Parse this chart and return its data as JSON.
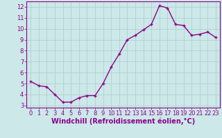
{
  "x": [
    0,
    1,
    2,
    3,
    4,
    5,
    6,
    7,
    8,
    9,
    10,
    11,
    12,
    13,
    14,
    15,
    16,
    17,
    18,
    19,
    20,
    21,
    22,
    23
  ],
  "y": [
    5.2,
    4.8,
    4.7,
    4.0,
    3.3,
    3.3,
    3.7,
    3.9,
    3.9,
    5.0,
    6.5,
    7.7,
    9.0,
    9.4,
    9.9,
    10.4,
    12.1,
    11.9,
    10.4,
    10.3,
    9.4,
    9.5,
    9.7,
    9.2
  ],
  "line_color": "#8B008B",
  "marker_color": "#8B008B",
  "bg_color": "#cce8e8",
  "grid_color": "#aacccc",
  "xlabel": "Windchill (Refroidissement éolien,°C)",
  "xlabel_color": "#8B008B",
  "xlim": [
    -0.5,
    23.5
  ],
  "ylim": [
    2.8,
    12.5
  ],
  "yticks": [
    3,
    4,
    5,
    6,
    7,
    8,
    9,
    10,
    11,
    12
  ],
  "xticks": [
    0,
    1,
    2,
    3,
    4,
    5,
    6,
    7,
    8,
    9,
    10,
    11,
    12,
    13,
    14,
    15,
    16,
    17,
    18,
    19,
    20,
    21,
    22,
    23
  ],
  "tick_color": "#8B008B",
  "spine_color": "#8B008B",
  "tick_label_fontsize": 6.0,
  "xlabel_fontsize": 7.0,
  "marker_size": 2.5,
  "line_width": 1.0
}
